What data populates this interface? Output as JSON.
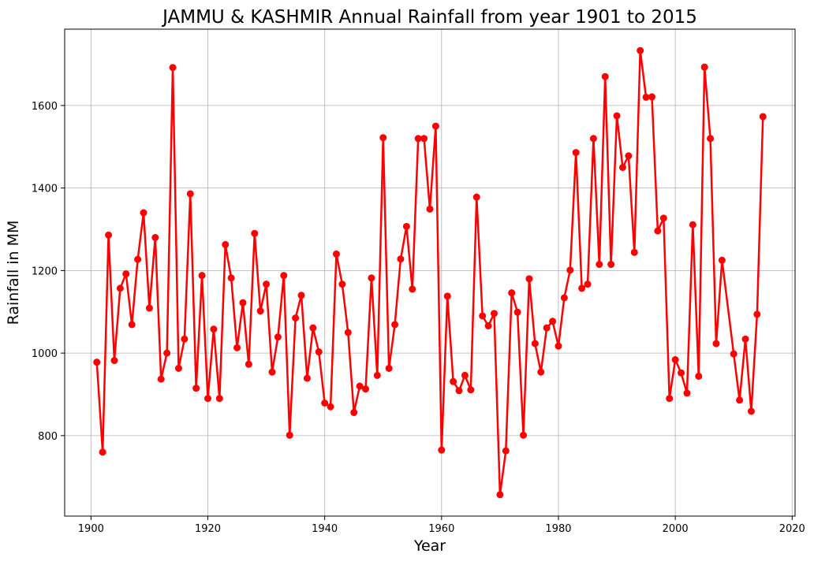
{
  "chart_data": {
    "type": "line",
    "title": "JAMMU & KASHMIR Annual Rainfall from year 1901 to 2015",
    "xlabel": "Year",
    "ylabel": "Rainfall in MM",
    "xlim": [
      1895.5,
      2020.5
    ],
    "ylim": [
      605,
      1785
    ],
    "xticks": [
      1900,
      1920,
      1940,
      1960,
      1980,
      2000,
      2020
    ],
    "yticks": [
      800,
      1000,
      1200,
      1400,
      1600
    ],
    "grid": true,
    "color": "#ff0000",
    "series": [
      {
        "points": [
          [
            1901,
            978
          ],
          [
            1902,
            760
          ],
          [
            1903,
            1286
          ],
          [
            1904,
            982
          ],
          [
            1905,
            1157
          ],
          [
            1906,
            1192
          ],
          [
            1907,
            1069
          ],
          [
            1908,
            1227
          ],
          [
            1909,
            1340
          ],
          [
            1910,
            1109
          ],
          [
            1911,
            1280
          ],
          [
            1912,
            937
          ],
          [
            1913,
            1000
          ],
          [
            1914,
            1692
          ],
          [
            1915,
            963
          ],
          [
            1916,
            1034
          ],
          [
            1917,
            1386
          ],
          [
            1918,
            915
          ],
          [
            1919,
            1188
          ],
          [
            1920,
            890
          ],
          [
            1921,
            1058
          ],
          [
            1922,
            890
          ],
          [
            1923,
            1263
          ],
          [
            1924,
            1182
          ],
          [
            1925,
            1013
          ],
          [
            1926,
            1122
          ],
          [
            1927,
            973
          ],
          [
            1928,
            1290
          ],
          [
            1929,
            1102
          ],
          [
            1930,
            1167
          ],
          [
            1931,
            954
          ],
          [
            1932,
            1039
          ],
          [
            1933,
            1188
          ],
          [
            1934,
            801
          ],
          [
            1935,
            1085
          ],
          [
            1936,
            1140
          ],
          [
            1937,
            939
          ],
          [
            1938,
            1061
          ],
          [
            1939,
            1003
          ],
          [
            1940,
            879
          ],
          [
            1941,
            870
          ],
          [
            1942,
            1240
          ],
          [
            1943,
            1167
          ],
          [
            1944,
            1050
          ],
          [
            1945,
            856
          ],
          [
            1946,
            920
          ],
          [
            1947,
            913
          ],
          [
            1948,
            1182
          ],
          [
            1949,
            946
          ],
          [
            1950,
            1522
          ],
          [
            1951,
            963
          ],
          [
            1952,
            1069
          ],
          [
            1953,
            1228
          ],
          [
            1954,
            1307
          ],
          [
            1955,
            1155
          ],
          [
            1956,
            1520
          ],
          [
            1957,
            1520
          ],
          [
            1958,
            1349
          ],
          [
            1959,
            1550
          ],
          [
            1960,
            765
          ],
          [
            1961,
            1138
          ],
          [
            1962,
            931
          ],
          [
            1963,
            909
          ],
          [
            1964,
            946
          ],
          [
            1965,
            911
          ],
          [
            1966,
            1378
          ],
          [
            1967,
            1090
          ],
          [
            1968,
            1066
          ],
          [
            1969,
            1096
          ],
          [
            1970,
            657
          ],
          [
            1971,
            763
          ],
          [
            1972,
            1146
          ],
          [
            1973,
            1099
          ],
          [
            1974,
            801
          ],
          [
            1975,
            1180
          ],
          [
            1976,
            1023
          ],
          [
            1977,
            954
          ],
          [
            1978,
            1061
          ],
          [
            1979,
            1077
          ],
          [
            1980,
            1017
          ],
          [
            1981,
            1134
          ],
          [
            1982,
            1201
          ],
          [
            1983,
            1486
          ],
          [
            1984,
            1157
          ],
          [
            1985,
            1167
          ],
          [
            1986,
            1520
          ],
          [
            1987,
            1215
          ],
          [
            1988,
            1670
          ],
          [
            1989,
            1215
          ],
          [
            1990,
            1575
          ],
          [
            1991,
            1450
          ],
          [
            1992,
            1478
          ],
          [
            1993,
            1244
          ],
          [
            1994,
            1733
          ],
          [
            1995,
            1620
          ],
          [
            1996,
            1621
          ],
          [
            1997,
            1296
          ],
          [
            1998,
            1327
          ],
          [
            1999,
            890
          ],
          [
            2000,
            984
          ],
          [
            2001,
            952
          ],
          [
            2002,
            903
          ],
          [
            2003,
            1311
          ],
          [
            2004,
            944
          ],
          [
            2005,
            1693
          ],
          [
            2006,
            1520
          ],
          [
            2007,
            1023
          ],
          [
            2008,
            1225
          ],
          [
            2010,
            998
          ],
          [
            2011,
            886
          ],
          [
            2012,
            1034
          ],
          [
            2013,
            859
          ],
          [
            2014,
            1094
          ],
          [
            2015,
            1573
          ]
        ]
      }
    ]
  }
}
